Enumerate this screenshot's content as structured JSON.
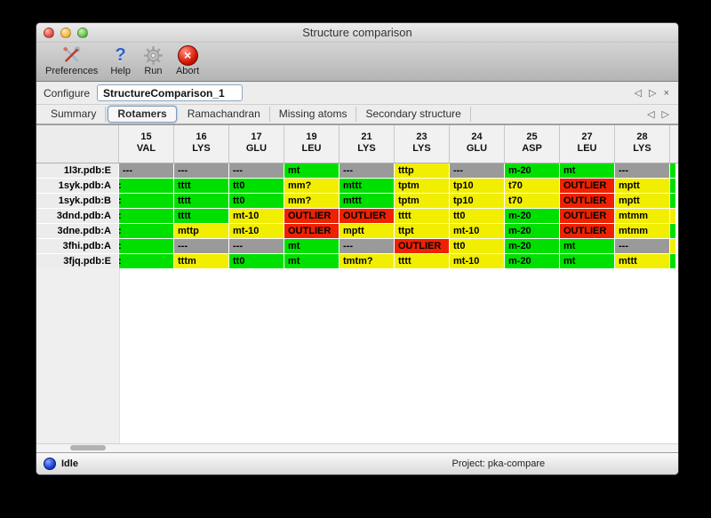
{
  "window": {
    "title": "Structure comparison"
  },
  "toolbar": {
    "buttons": [
      {
        "label": "Preferences",
        "icon": "tools-icon"
      },
      {
        "label": "Help",
        "icon": "question-icon",
        "glyph": "?"
      },
      {
        "label": "Run",
        "icon": "gear-icon"
      },
      {
        "label": "Abort",
        "icon": "abort-icon",
        "glyph": "×"
      }
    ]
  },
  "configure": {
    "label": "Configure",
    "value": "StructureComparison_1",
    "nav": {
      "back": "◁",
      "forward": "▷",
      "close": "×"
    }
  },
  "tabs": {
    "items": [
      {
        "label": "Summary",
        "selected": false
      },
      {
        "label": "Rotamers",
        "selected": true
      },
      {
        "label": "Ramachandran",
        "selected": false
      },
      {
        "label": "Missing atoms",
        "selected": false
      },
      {
        "label": "Secondary structure",
        "selected": false
      }
    ],
    "nav": {
      "back": "◁",
      "forward": "▷"
    }
  },
  "colors": {
    "green": "#00e000",
    "yellow": "#f2ee00",
    "red": "#ee2200",
    "gray": "#9a9a9a"
  },
  "table": {
    "columns": [
      {
        "num": "15",
        "res": "VAL"
      },
      {
        "num": "16",
        "res": "LYS"
      },
      {
        "num": "17",
        "res": "GLU"
      },
      {
        "num": "19",
        "res": "LEU"
      },
      {
        "num": "21",
        "res": "LYS"
      },
      {
        "num": "23",
        "res": "LYS"
      },
      {
        "num": "24",
        "res": "GLU"
      },
      {
        "num": "25",
        "res": "ASP"
      },
      {
        "num": "27",
        "res": "LEU"
      },
      {
        "num": "28",
        "res": "LYS"
      }
    ],
    "rows": [
      {
        "label": "1l3r.pdb:E",
        "sliver": "green",
        "cells": [
          {
            "t": "---",
            "c": "gray"
          },
          {
            "t": "---",
            "c": "gray"
          },
          {
            "t": "---",
            "c": "gray"
          },
          {
            "t": "mt",
            "c": "green"
          },
          {
            "t": "---",
            "c": "gray"
          },
          {
            "t": "tttp",
            "c": "yellow"
          },
          {
            "t": "---",
            "c": "gray"
          },
          {
            "t": "m-20",
            "c": "green"
          },
          {
            "t": "mt",
            "c": "green"
          },
          {
            "t": "---",
            "c": "gray"
          }
        ]
      },
      {
        "label": "1syk.pdb:A",
        "sliver": "green",
        "cells": [
          {
            "t": ":",
            "c": "green",
            "clip": true
          },
          {
            "t": "tttt",
            "c": "green"
          },
          {
            "t": "tt0",
            "c": "green"
          },
          {
            "t": "mm?",
            "c": "yellow"
          },
          {
            "t": "mttt",
            "c": "green"
          },
          {
            "t": "tptm",
            "c": "yellow"
          },
          {
            "t": "tp10",
            "c": "yellow"
          },
          {
            "t": "t70",
            "c": "yellow"
          },
          {
            "t": "OUTLIER",
            "c": "red"
          },
          {
            "t": "mptt",
            "c": "yellow"
          }
        ]
      },
      {
        "label": "1syk.pdb:B",
        "sliver": "green",
        "cells": [
          {
            "t": ":",
            "c": "green",
            "clip": true
          },
          {
            "t": "tttt",
            "c": "green"
          },
          {
            "t": "tt0",
            "c": "green"
          },
          {
            "t": "mm?",
            "c": "yellow"
          },
          {
            "t": "mttt",
            "c": "green"
          },
          {
            "t": "tptm",
            "c": "yellow"
          },
          {
            "t": "tp10",
            "c": "yellow"
          },
          {
            "t": "t70",
            "c": "yellow"
          },
          {
            "t": "OUTLIER",
            "c": "red"
          },
          {
            "t": "mptt",
            "c": "yellow"
          }
        ]
      },
      {
        "label": "3dnd.pdb:A",
        "sliver": "yellow",
        "cells": [
          {
            "t": ":",
            "c": "green",
            "clip": true
          },
          {
            "t": "tttt",
            "c": "green"
          },
          {
            "t": "mt-10",
            "c": "yellow"
          },
          {
            "t": "OUTLIER",
            "c": "red"
          },
          {
            "t": "OUTLIER",
            "c": "red"
          },
          {
            "t": "tttt",
            "c": "yellow"
          },
          {
            "t": "tt0",
            "c": "yellow"
          },
          {
            "t": "m-20",
            "c": "green"
          },
          {
            "t": "OUTLIER",
            "c": "red"
          },
          {
            "t": "mtmm",
            "c": "yellow"
          }
        ]
      },
      {
        "label": "3dne.pdb:A",
        "sliver": "green",
        "cells": [
          {
            "t": ":",
            "c": "green",
            "clip": true
          },
          {
            "t": "mttp",
            "c": "yellow"
          },
          {
            "t": "mt-10",
            "c": "yellow"
          },
          {
            "t": "OUTLIER",
            "c": "red"
          },
          {
            "t": "mptt",
            "c": "yellow"
          },
          {
            "t": "ttpt",
            "c": "yellow"
          },
          {
            "t": "mt-10",
            "c": "yellow"
          },
          {
            "t": "m-20",
            "c": "green"
          },
          {
            "t": "OUTLIER",
            "c": "red"
          },
          {
            "t": "mtmm",
            "c": "yellow"
          }
        ]
      },
      {
        "label": "3fhi.pdb:A",
        "sliver": "yellow",
        "cells": [
          {
            "t": ":",
            "c": "green",
            "clip": true
          },
          {
            "t": "---",
            "c": "gray"
          },
          {
            "t": "---",
            "c": "gray"
          },
          {
            "t": "mt",
            "c": "green"
          },
          {
            "t": "---",
            "c": "gray"
          },
          {
            "t": "OUTLIER",
            "c": "red"
          },
          {
            "t": "tt0",
            "c": "yellow"
          },
          {
            "t": "m-20",
            "c": "green"
          },
          {
            "t": "mt",
            "c": "green"
          },
          {
            "t": "---",
            "c": "gray"
          }
        ]
      },
      {
        "label": "3fjq.pdb:E",
        "sliver": "green",
        "cells": [
          {
            "t": ":",
            "c": "green",
            "clip": true
          },
          {
            "t": "tttm",
            "c": "yellow"
          },
          {
            "t": "tt0",
            "c": "green"
          },
          {
            "t": "mt",
            "c": "green"
          },
          {
            "t": "tmtm?",
            "c": "yellow"
          },
          {
            "t": "tttt",
            "c": "yellow"
          },
          {
            "t": "mt-10",
            "c": "yellow"
          },
          {
            "t": "m-20",
            "c": "green"
          },
          {
            "t": "mt",
            "c": "green"
          },
          {
            "t": "mttt",
            "c": "yellow"
          }
        ]
      }
    ]
  },
  "statusbar": {
    "status": "Idle",
    "project": "Project: pka-compare"
  }
}
